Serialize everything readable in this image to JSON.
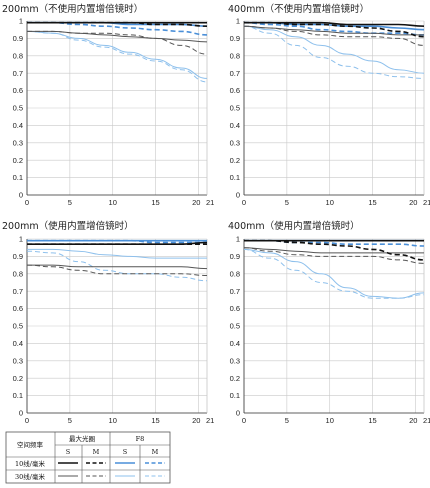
{
  "chart_data": [
    {
      "type": "line",
      "title": "200mm（不使用内置增倍镜时）",
      "xlim": [
        0,
        21
      ],
      "ylim": [
        0,
        1
      ],
      "xticks": [
        "0",
        "5",
        "10",
        "15",
        "20",
        "21"
      ],
      "yticks": [
        "0",
        "0.1",
        "0.2",
        "0.3",
        "0.4",
        "0.5",
        "0.6",
        "0.7",
        "0.8",
        "0.9",
        "1"
      ],
      "series": [
        {
          "key": "wide_10_S",
          "x": [
            0,
            3,
            6,
            9,
            12,
            15,
            18,
            21
          ],
          "values": [
            0.99,
            0.99,
            0.99,
            0.99,
            0.99,
            0.99,
            0.99,
            0.99
          ]
        },
        {
          "key": "wide_10_M",
          "x": [
            0,
            3,
            6,
            9,
            12,
            15,
            18,
            21
          ],
          "values": [
            0.99,
            0.99,
            0.99,
            0.99,
            0.99,
            0.98,
            0.98,
            0.97
          ]
        },
        {
          "key": "wide_30_S",
          "x": [
            0,
            3,
            6,
            9,
            12,
            15,
            18,
            21
          ],
          "values": [
            0.94,
            0.94,
            0.93,
            0.92,
            0.91,
            0.9,
            0.89,
            0.88
          ]
        },
        {
          "key": "wide_30_M",
          "x": [
            0,
            3,
            6,
            9,
            12,
            15,
            18,
            21
          ],
          "values": [
            0.94,
            0.94,
            0.93,
            0.93,
            0.92,
            0.9,
            0.86,
            0.81
          ]
        },
        {
          "key": "f8_10_S",
          "x": [
            0,
            3,
            6,
            9,
            12,
            15,
            18,
            21
          ],
          "values": [
            0.99,
            0.99,
            0.99,
            0.99,
            0.98,
            0.98,
            0.98,
            0.97
          ]
        },
        {
          "key": "f8_10_M",
          "x": [
            0,
            3,
            6,
            9,
            12,
            15,
            18,
            21
          ],
          "values": [
            0.99,
            0.99,
            0.98,
            0.97,
            0.96,
            0.95,
            0.94,
            0.92
          ]
        },
        {
          "key": "f8_30_S",
          "x": [
            0,
            3,
            6,
            9,
            12,
            15,
            18,
            21
          ],
          "values": [
            0.94,
            0.93,
            0.9,
            0.86,
            0.82,
            0.78,
            0.73,
            0.67
          ]
        },
        {
          "key": "f8_30_M",
          "x": [
            0,
            3,
            6,
            9,
            12,
            15,
            18,
            21
          ],
          "values": [
            0.94,
            0.93,
            0.89,
            0.85,
            0.81,
            0.77,
            0.72,
            0.65
          ]
        }
      ]
    },
    {
      "type": "line",
      "title": "400mm（不使用内置增倍镜时）",
      "xlim": [
        0,
        21
      ],
      "ylim": [
        0,
        1
      ],
      "xticks": [
        "0",
        "5",
        "10",
        "15",
        "20",
        "21"
      ],
      "yticks": [
        "0",
        "0.1",
        "0.2",
        "0.3",
        "0.4",
        "0.5",
        "0.6",
        "0.7",
        "0.8",
        "0.9",
        "1"
      ],
      "series": [
        {
          "key": "wide_10_S",
          "x": [
            0,
            3,
            6,
            9,
            12,
            15,
            18,
            21
          ],
          "values": [
            0.99,
            0.99,
            0.99,
            0.99,
            0.98,
            0.98,
            0.98,
            0.97
          ]
        },
        {
          "key": "wide_10_M",
          "x": [
            0,
            3,
            6,
            9,
            12,
            15,
            18,
            21
          ],
          "values": [
            0.99,
            0.99,
            0.98,
            0.98,
            0.97,
            0.96,
            0.94,
            0.91
          ]
        },
        {
          "key": "wide_30_S",
          "x": [
            0,
            3,
            6,
            9,
            12,
            15,
            18,
            21
          ],
          "values": [
            0.97,
            0.96,
            0.95,
            0.94,
            0.93,
            0.93,
            0.92,
            0.92
          ]
        },
        {
          "key": "wide_30_M",
          "x": [
            0,
            3,
            6,
            9,
            12,
            15,
            18,
            21
          ],
          "values": [
            0.97,
            0.96,
            0.94,
            0.92,
            0.91,
            0.91,
            0.9,
            0.86
          ]
        },
        {
          "key": "f8_10_S",
          "x": [
            0,
            3,
            6,
            9,
            12,
            15,
            18,
            21
          ],
          "values": [
            0.99,
            0.99,
            0.98,
            0.98,
            0.97,
            0.97,
            0.96,
            0.95
          ]
        },
        {
          "key": "f8_10_M",
          "x": [
            0,
            3,
            6,
            9,
            12,
            15,
            18,
            21
          ],
          "values": [
            0.99,
            0.98,
            0.97,
            0.95,
            0.94,
            0.93,
            0.93,
            0.92
          ]
        },
        {
          "key": "f8_30_S",
          "x": [
            0,
            3,
            6,
            9,
            12,
            15,
            18,
            21
          ],
          "values": [
            0.97,
            0.95,
            0.91,
            0.86,
            0.81,
            0.77,
            0.72,
            0.7
          ]
        },
        {
          "key": "f8_30_M",
          "x": [
            0,
            3,
            6,
            9,
            12,
            15,
            18,
            21
          ],
          "values": [
            0.97,
            0.93,
            0.86,
            0.79,
            0.74,
            0.7,
            0.68,
            0.67
          ]
        }
      ]
    },
    {
      "type": "line",
      "title": "200mm（使用内置增倍镜时）",
      "xlim": [
        0,
        21
      ],
      "ylim": [
        0,
        1
      ],
      "xticks": [
        "0",
        "5",
        "10",
        "15",
        "20",
        "21"
      ],
      "yticks": [
        "0",
        "0.1",
        "0.2",
        "0.3",
        "0.4",
        "0.5",
        "0.6",
        "0.7",
        "0.8",
        "0.9",
        "1"
      ],
      "series": [
        {
          "key": "wide_10_S",
          "x": [
            0,
            3,
            6,
            9,
            12,
            15,
            18,
            21
          ],
          "values": [
            0.97,
            0.97,
            0.97,
            0.97,
            0.97,
            0.97,
            0.97,
            0.98
          ]
        },
        {
          "key": "wide_10_M",
          "x": [
            0,
            3,
            6,
            9,
            12,
            15,
            18,
            21
          ],
          "values": [
            0.97,
            0.97,
            0.97,
            0.97,
            0.97,
            0.97,
            0.97,
            0.97
          ]
        },
        {
          "key": "wide_30_S",
          "x": [
            0,
            3,
            6,
            9,
            12,
            15,
            18,
            21
          ],
          "values": [
            0.85,
            0.85,
            0.84,
            0.84,
            0.84,
            0.84,
            0.84,
            0.83
          ]
        },
        {
          "key": "wide_30_M",
          "x": [
            0,
            3,
            6,
            9,
            12,
            15,
            18,
            21
          ],
          "values": [
            0.85,
            0.84,
            0.82,
            0.8,
            0.8,
            0.8,
            0.8,
            0.79
          ]
        },
        {
          "key": "f8_10_S",
          "x": [
            0,
            3,
            6,
            9,
            12,
            15,
            18,
            21
          ],
          "values": [
            0.99,
            0.99,
            0.99,
            0.99,
            0.99,
            0.99,
            0.99,
            0.99
          ]
        },
        {
          "key": "f8_10_M",
          "x": [
            0,
            3,
            6,
            9,
            12,
            15,
            18,
            21
          ],
          "values": [
            0.99,
            0.99,
            0.99,
            0.99,
            0.99,
            0.98,
            0.98,
            0.98
          ]
        },
        {
          "key": "f8_30_S",
          "x": [
            0,
            3,
            6,
            9,
            12,
            15,
            18,
            21
          ],
          "values": [
            0.94,
            0.94,
            0.93,
            0.91,
            0.9,
            0.89,
            0.89,
            0.89
          ]
        },
        {
          "key": "f8_30_M",
          "x": [
            0,
            3,
            6,
            9,
            12,
            15,
            18,
            21
          ],
          "values": [
            0.93,
            0.92,
            0.87,
            0.82,
            0.8,
            0.8,
            0.78,
            0.76
          ]
        }
      ]
    },
    {
      "type": "line",
      "title": "400mm（使用内置增倍镜时）",
      "xlim": [
        0,
        21
      ],
      "ylim": [
        0,
        1
      ],
      "xticks": [
        "0",
        "5",
        "10",
        "15",
        "20",
        "21"
      ],
      "yticks": [
        "0",
        "0.1",
        "0.2",
        "0.3",
        "0.4",
        "0.5",
        "0.6",
        "0.7",
        "0.8",
        "0.9",
        "1"
      ],
      "series": [
        {
          "key": "wide_10_S",
          "x": [
            0,
            3,
            6,
            9,
            12,
            15,
            18,
            21
          ],
          "values": [
            0.99,
            0.99,
            0.99,
            0.99,
            0.99,
            0.99,
            0.99,
            0.99
          ]
        },
        {
          "key": "wide_10_M",
          "x": [
            0,
            3,
            6,
            9,
            12,
            15,
            18,
            21
          ],
          "values": [
            0.99,
            0.99,
            0.98,
            0.97,
            0.96,
            0.94,
            0.91,
            0.88
          ]
        },
        {
          "key": "wide_30_S",
          "x": [
            0,
            3,
            6,
            9,
            12,
            15,
            18,
            21
          ],
          "values": [
            0.95,
            0.94,
            0.93,
            0.92,
            0.92,
            0.92,
            0.92,
            0.92
          ]
        },
        {
          "key": "wide_30_M",
          "x": [
            0,
            3,
            6,
            9,
            12,
            15,
            18,
            21
          ],
          "values": [
            0.95,
            0.93,
            0.91,
            0.9,
            0.9,
            0.9,
            0.88,
            0.86
          ]
        },
        {
          "key": "f8_10_S",
          "x": [
            0,
            3,
            6,
            9,
            12,
            15,
            18,
            21
          ],
          "values": [
            0.99,
            0.99,
            0.99,
            0.99,
            0.99,
            0.99,
            0.99,
            0.99
          ]
        },
        {
          "key": "f8_10_M",
          "x": [
            0,
            3,
            6,
            9,
            12,
            15,
            18,
            21
          ],
          "values": [
            0.99,
            0.99,
            0.98,
            0.98,
            0.97,
            0.97,
            0.97,
            0.96
          ]
        },
        {
          "key": "f8_30_S",
          "x": [
            0,
            3,
            6,
            9,
            12,
            15,
            18,
            21
          ],
          "values": [
            0.94,
            0.92,
            0.87,
            0.8,
            0.72,
            0.67,
            0.66,
            0.69
          ]
        },
        {
          "key": "f8_30_M",
          "x": [
            0,
            3,
            6,
            9,
            12,
            15,
            18,
            21
          ],
          "values": [
            0.94,
            0.89,
            0.82,
            0.75,
            0.7,
            0.66,
            0.66,
            0.68
          ]
        }
      ]
    }
  ],
  "line_styles": {
    "wide_10_S": {
      "color": "#111111",
      "dash": false,
      "width": 1.6
    },
    "wide_10_M": {
      "color": "#111111",
      "dash": true,
      "width": 1.6
    },
    "wide_30_S": {
      "color": "#555555",
      "dash": false,
      "width": 1.0
    },
    "wide_30_M": {
      "color": "#555555",
      "dash": true,
      "width": 1.0
    },
    "f8_10_S": {
      "color": "#4a8fd8",
      "dash": false,
      "width": 1.6
    },
    "f8_10_M": {
      "color": "#4a8fd8",
      "dash": true,
      "width": 1.6
    },
    "f8_30_S": {
      "color": "#8ec0ec",
      "dash": false,
      "width": 1.0
    },
    "f8_30_M": {
      "color": "#8ec0ec",
      "dash": true,
      "width": 1.0
    }
  },
  "legend": {
    "header_freq": "空间频率",
    "header_max": "最大光圈",
    "header_f8": "F8",
    "col_s": "S",
    "col_m": "M",
    "row_10": "10线/毫米",
    "row_30": "30线/毫米"
  },
  "colors": {
    "grid": "#c9c9c9",
    "axis": "#333333",
    "legend_border": "#555555"
  }
}
